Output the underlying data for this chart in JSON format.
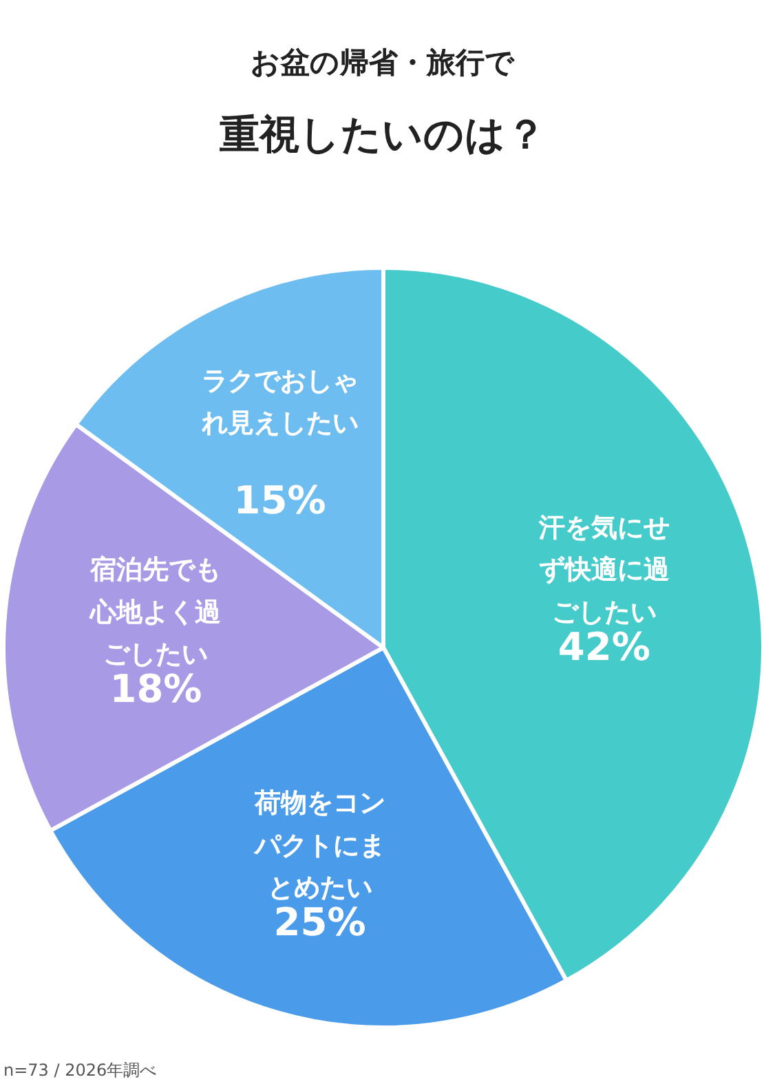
{
  "chart_data": {
    "type": "pie",
    "title": "お盆の帰省・旅行で",
    "subtitle": "重視したいのは？",
    "categories": [
      "汗を気にせず快適に過ごしたい",
      "荷物をコンパクトにまとめたい",
      "宿泊先でも心地よく過ごしたい",
      "ラクでおしゃれ見えしたい"
    ],
    "values": [
      42,
      25,
      18,
      15
    ],
    "value_labels": [
      "42%",
      "25%",
      "18%",
      "15%"
    ],
    "colors": [
      "#45cbc9",
      "#4a9be9",
      "#a99ae6",
      "#6dbdf1"
    ],
    "annotations": [
      "n=73 / 2026年調べ"
    ]
  }
}
